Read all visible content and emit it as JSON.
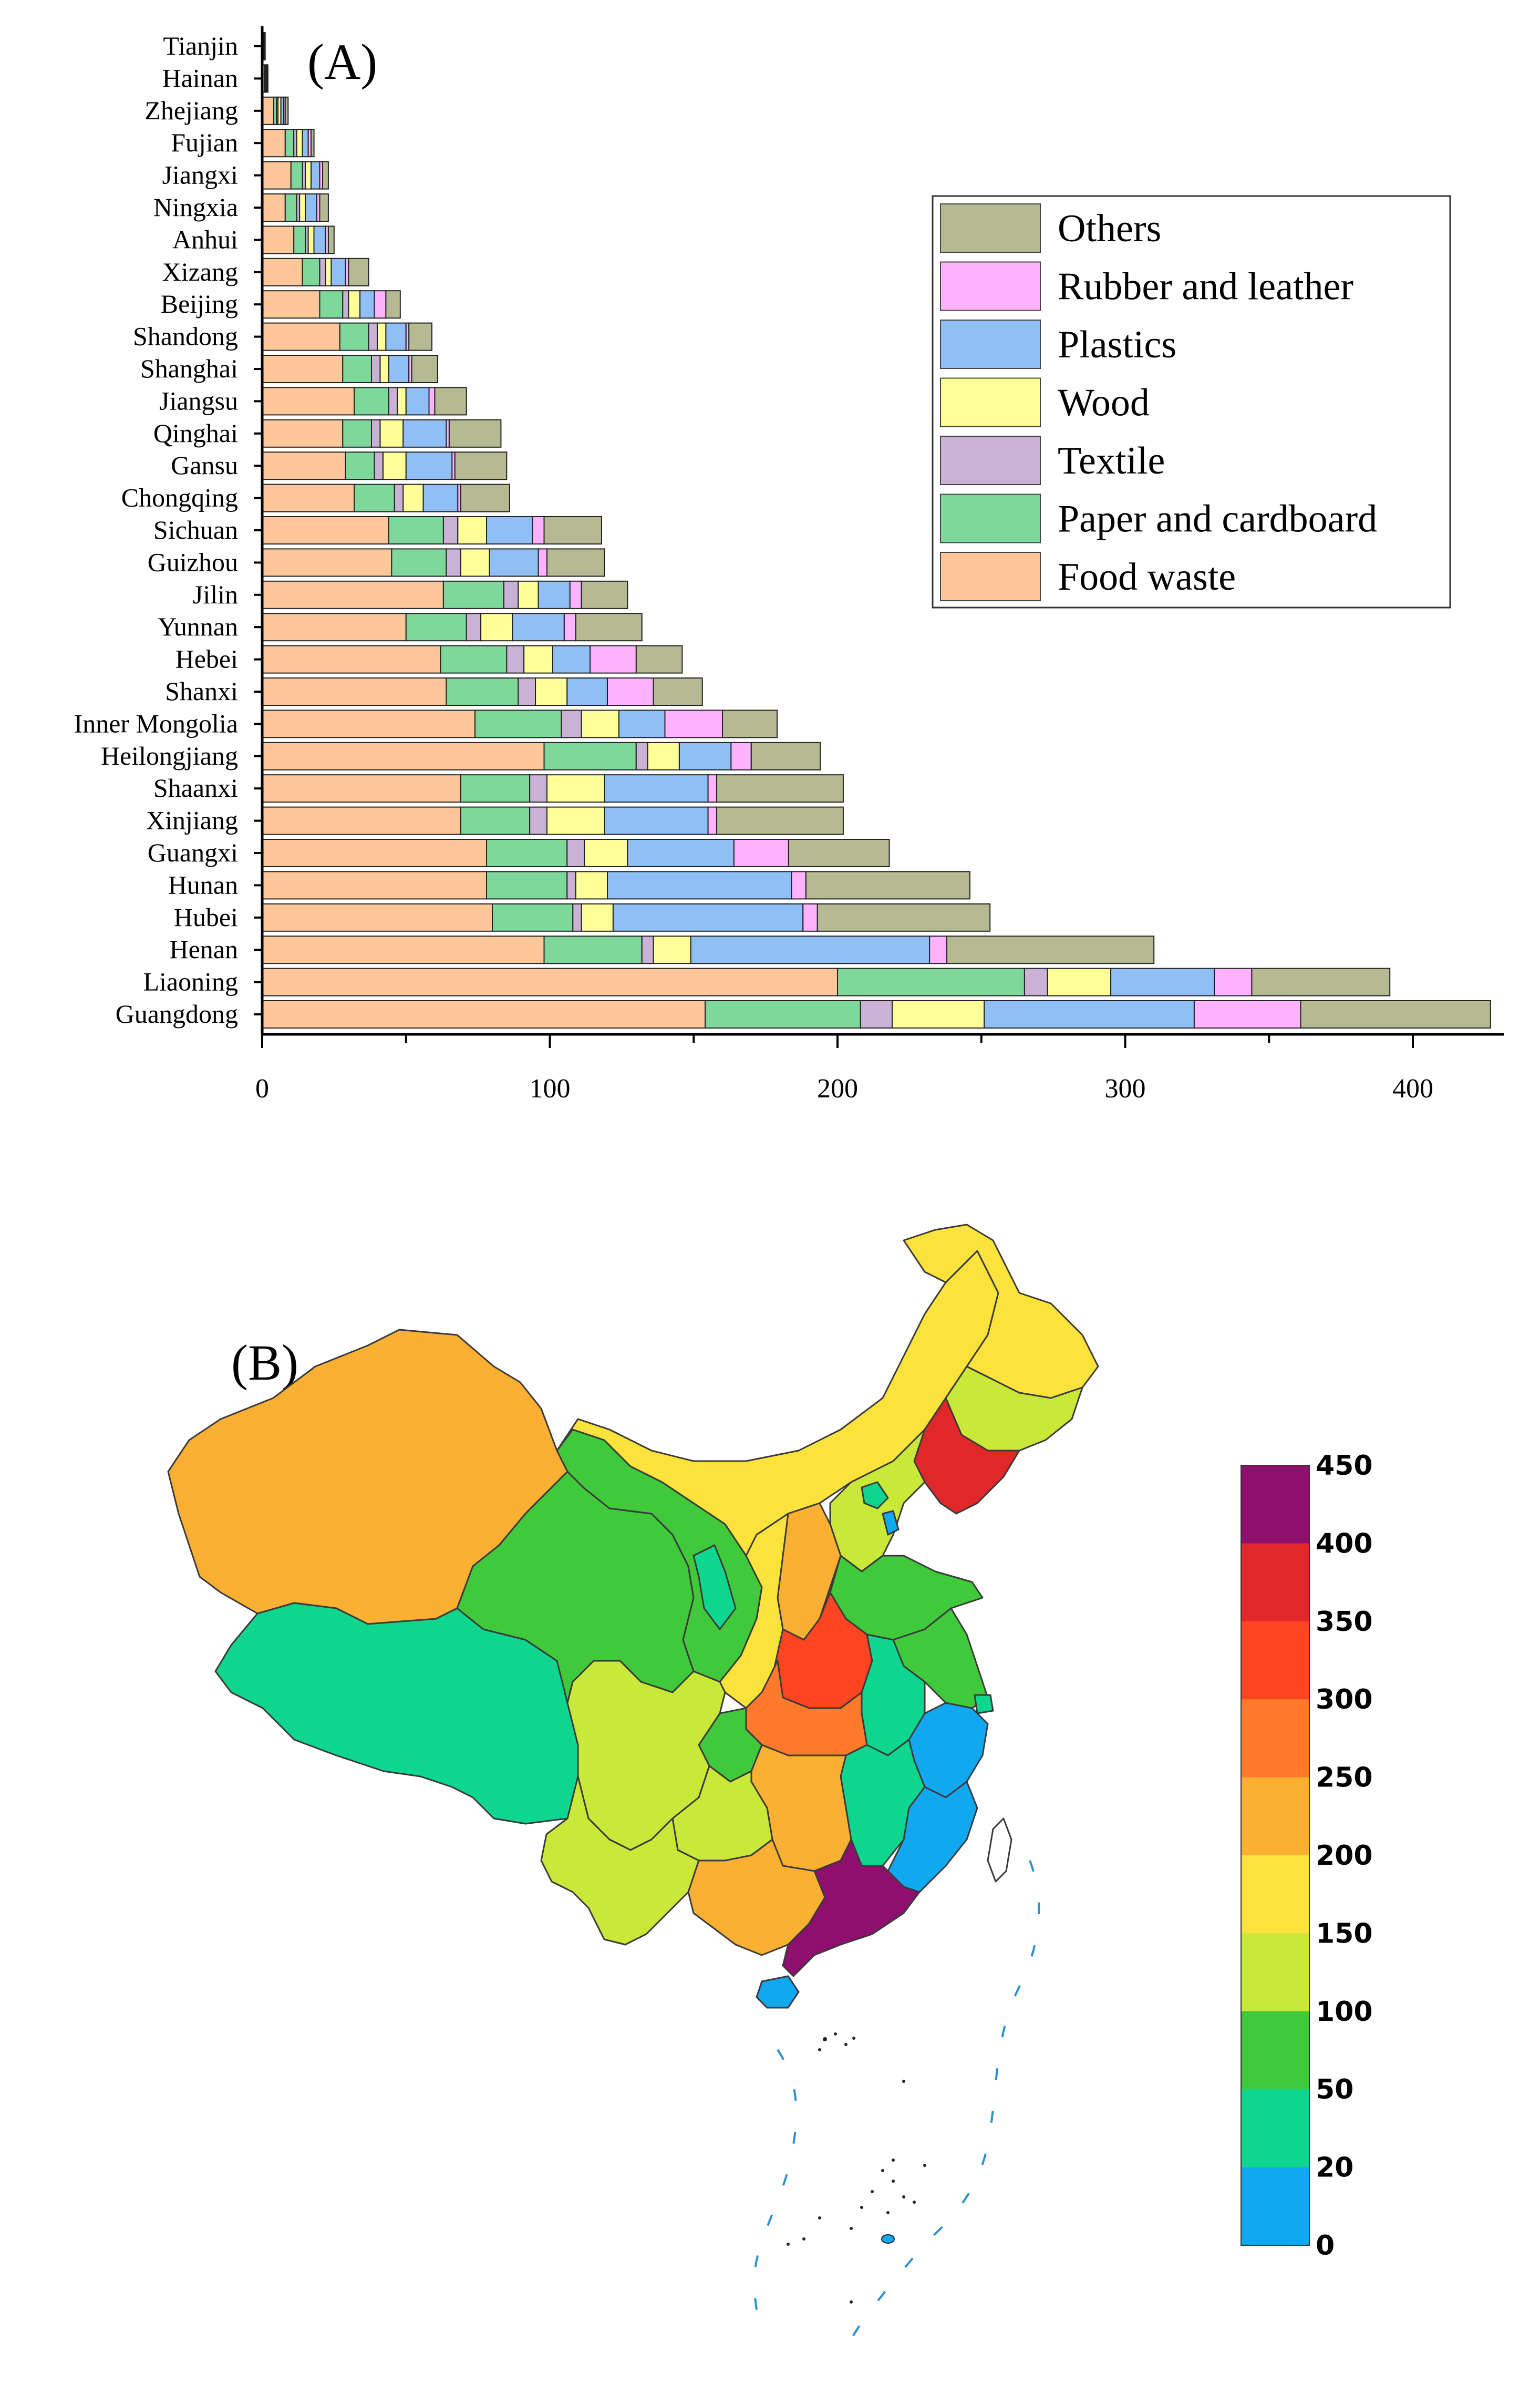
{
  "chart_data": [
    {
      "type": "bar",
      "orientation": "horizontal",
      "stacked": true,
      "panel_label": "(A)",
      "title": "",
      "xlabel": "",
      "ylabel": "",
      "xlim": [
        0,
        430
      ],
      "xticks": [
        0,
        100,
        200,
        300,
        400
      ],
      "legend_position": "top-right",
      "categories": [
        "Tianjin",
        "Hainan",
        "Zhejiang",
        "Fujian",
        "Jiangxi",
        "Ningxia",
        "Anhui",
        "Xizang",
        "Beijing",
        "Shandong",
        "Shanghai",
        "Jiangsu",
        "Qinghai",
        "Gansu",
        "Chongqing",
        "Sichuan",
        "Guizhou",
        "Jilin",
        "Yunnan",
        "Hebei",
        "Shanxi",
        "Inner Mongolia",
        "Heilongjiang",
        "Shaanxi",
        "Xinjiang",
        "Guangxi",
        "Hunan",
        "Hubei",
        "Henan",
        "Liaoning",
        "Guangdong"
      ],
      "series": [
        {
          "name": "Food waste",
          "color": "#FDC79A",
          "values": [
            0.4,
            0.8,
            4,
            8,
            10,
            8,
            11,
            14,
            20,
            27,
            28,
            32,
            28,
            29,
            32,
            44,
            45,
            63,
            50,
            62,
            64,
            74,
            98,
            69,
            69,
            78,
            78,
            80,
            98,
            200,
            154
          ]
        },
        {
          "name": "Paper and cardboard",
          "color": "#7FD89B",
          "values": [
            0.2,
            0.3,
            1,
            3,
            4,
            4,
            4,
            6,
            8,
            10,
            10,
            12,
            10,
            10,
            14,
            19,
            19,
            21,
            21,
            23,
            25,
            30,
            32,
            24,
            24,
            28,
            28,
            28,
            34,
            65,
            54
          ]
        },
        {
          "name": "Textile",
          "color": "#C9B2D6",
          "values": [
            0.1,
            0.1,
            0.5,
            1,
            1,
            1,
            1,
            2,
            2,
            3,
            3,
            3,
            3,
            3,
            3,
            5,
            5,
            5,
            5,
            6,
            6,
            7,
            4,
            6,
            6,
            6,
            3,
            3,
            4,
            8,
            11
          ]
        },
        {
          "name": "Wood",
          "color": "#FFFF99",
          "values": [
            0.1,
            0.2,
            1,
            2,
            2,
            2,
            2,
            2,
            4,
            3,
            3,
            3,
            8,
            8,
            7,
            10,
            10,
            7,
            11,
            10,
            11,
            13,
            11,
            20,
            20,
            15,
            11,
            11,
            13,
            22,
            32
          ]
        },
        {
          "name": "Plastics",
          "color": "#8FBFF5",
          "values": [
            0.1,
            0.2,
            1,
            2,
            3,
            4,
            4,
            5,
            5,
            7,
            7,
            8,
            15,
            16,
            12,
            16,
            17,
            11,
            18,
            13,
            14,
            16,
            18,
            36,
            36,
            37,
            64,
            66,
            83,
            36,
            73
          ]
        },
        {
          "name": "Rubber and leather",
          "color": "#FFB3FF",
          "values": [
            0.05,
            0.1,
            0.5,
            1,
            1,
            1,
            1,
            1,
            4,
            1,
            1,
            2,
            1,
            1,
            1,
            4,
            3,
            4,
            4,
            16,
            16,
            20,
            7,
            3,
            3,
            19,
            5,
            5,
            6,
            13,
            37
          ]
        },
        {
          "name": "Others",
          "color": "#B5BA92",
          "values": [
            0.1,
            0.3,
            1,
            1,
            2,
            3,
            2,
            7,
            5,
            8,
            9,
            11,
            18,
            18,
            17,
            20,
            20,
            16,
            23,
            16,
            17,
            19,
            24,
            44,
            44,
            35,
            57,
            60,
            72,
            48,
            66
          ]
        }
      ]
    },
    {
      "type": "choropleth-map",
      "panel_label": "(B)",
      "colorbar_ticks": [
        "450",
        "400",
        "350",
        "300",
        "250",
        "200",
        "150",
        "100",
        "50",
        "20",
        "0"
      ],
      "colorbar_colors": [
        "#8E0F6E",
        "#E0282A",
        "#FF4422",
        "#FF7A2A",
        "#FBB033",
        "#FCE33B",
        "#C9E838",
        "#3FC93B",
        "#0ED68E",
        "#10A8F0"
      ]
    }
  ]
}
